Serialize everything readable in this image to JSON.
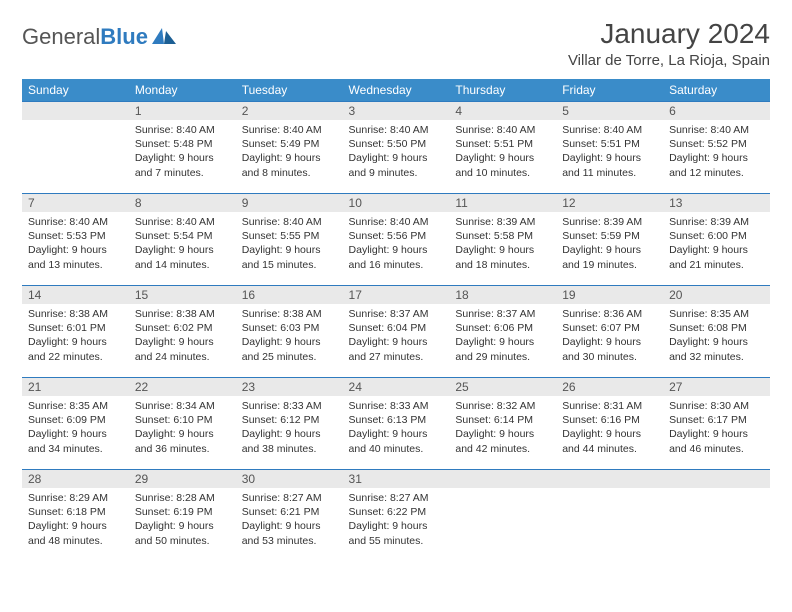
{
  "brand": {
    "part1": "General",
    "part2": "Blue"
  },
  "title": "January 2024",
  "location": "Villar de Torre, La Rioja, Spain",
  "colors": {
    "header_bg": "#3a8cc9",
    "header_text": "#ffffff",
    "daynum_bg": "#e9e9e9",
    "rule": "#2f7bbf",
    "text": "#333333",
    "logo_gray": "#555555",
    "logo_blue": "#2f7bbf"
  },
  "weekdays": [
    "Sunday",
    "Monday",
    "Tuesday",
    "Wednesday",
    "Thursday",
    "Friday",
    "Saturday"
  ],
  "weeks": [
    [
      null,
      {
        "n": "1",
        "sunrise": "8:40 AM",
        "sunset": "5:48 PM",
        "daylight": "9 hours and 7 minutes."
      },
      {
        "n": "2",
        "sunrise": "8:40 AM",
        "sunset": "5:49 PM",
        "daylight": "9 hours and 8 minutes."
      },
      {
        "n": "3",
        "sunrise": "8:40 AM",
        "sunset": "5:50 PM",
        "daylight": "9 hours and 9 minutes."
      },
      {
        "n": "4",
        "sunrise": "8:40 AM",
        "sunset": "5:51 PM",
        "daylight": "9 hours and 10 minutes."
      },
      {
        "n": "5",
        "sunrise": "8:40 AM",
        "sunset": "5:51 PM",
        "daylight": "9 hours and 11 minutes."
      },
      {
        "n": "6",
        "sunrise": "8:40 AM",
        "sunset": "5:52 PM",
        "daylight": "9 hours and 12 minutes."
      }
    ],
    [
      {
        "n": "7",
        "sunrise": "8:40 AM",
        "sunset": "5:53 PM",
        "daylight": "9 hours and 13 minutes."
      },
      {
        "n": "8",
        "sunrise": "8:40 AM",
        "sunset": "5:54 PM",
        "daylight": "9 hours and 14 minutes."
      },
      {
        "n": "9",
        "sunrise": "8:40 AM",
        "sunset": "5:55 PM",
        "daylight": "9 hours and 15 minutes."
      },
      {
        "n": "10",
        "sunrise": "8:40 AM",
        "sunset": "5:56 PM",
        "daylight": "9 hours and 16 minutes."
      },
      {
        "n": "11",
        "sunrise": "8:39 AM",
        "sunset": "5:58 PM",
        "daylight": "9 hours and 18 minutes."
      },
      {
        "n": "12",
        "sunrise": "8:39 AM",
        "sunset": "5:59 PM",
        "daylight": "9 hours and 19 minutes."
      },
      {
        "n": "13",
        "sunrise": "8:39 AM",
        "sunset": "6:00 PM",
        "daylight": "9 hours and 21 minutes."
      }
    ],
    [
      {
        "n": "14",
        "sunrise": "8:38 AM",
        "sunset": "6:01 PM",
        "daylight": "9 hours and 22 minutes."
      },
      {
        "n": "15",
        "sunrise": "8:38 AM",
        "sunset": "6:02 PM",
        "daylight": "9 hours and 24 minutes."
      },
      {
        "n": "16",
        "sunrise": "8:38 AM",
        "sunset": "6:03 PM",
        "daylight": "9 hours and 25 minutes."
      },
      {
        "n": "17",
        "sunrise": "8:37 AM",
        "sunset": "6:04 PM",
        "daylight": "9 hours and 27 minutes."
      },
      {
        "n": "18",
        "sunrise": "8:37 AM",
        "sunset": "6:06 PM",
        "daylight": "9 hours and 29 minutes."
      },
      {
        "n": "19",
        "sunrise": "8:36 AM",
        "sunset": "6:07 PM",
        "daylight": "9 hours and 30 minutes."
      },
      {
        "n": "20",
        "sunrise": "8:35 AM",
        "sunset": "6:08 PM",
        "daylight": "9 hours and 32 minutes."
      }
    ],
    [
      {
        "n": "21",
        "sunrise": "8:35 AM",
        "sunset": "6:09 PM",
        "daylight": "9 hours and 34 minutes."
      },
      {
        "n": "22",
        "sunrise": "8:34 AM",
        "sunset": "6:10 PM",
        "daylight": "9 hours and 36 minutes."
      },
      {
        "n": "23",
        "sunrise": "8:33 AM",
        "sunset": "6:12 PM",
        "daylight": "9 hours and 38 minutes."
      },
      {
        "n": "24",
        "sunrise": "8:33 AM",
        "sunset": "6:13 PM",
        "daylight": "9 hours and 40 minutes."
      },
      {
        "n": "25",
        "sunrise": "8:32 AM",
        "sunset": "6:14 PM",
        "daylight": "9 hours and 42 minutes."
      },
      {
        "n": "26",
        "sunrise": "8:31 AM",
        "sunset": "6:16 PM",
        "daylight": "9 hours and 44 minutes."
      },
      {
        "n": "27",
        "sunrise": "8:30 AM",
        "sunset": "6:17 PM",
        "daylight": "9 hours and 46 minutes."
      }
    ],
    [
      {
        "n": "28",
        "sunrise": "8:29 AM",
        "sunset": "6:18 PM",
        "daylight": "9 hours and 48 minutes."
      },
      {
        "n": "29",
        "sunrise": "8:28 AM",
        "sunset": "6:19 PM",
        "daylight": "9 hours and 50 minutes."
      },
      {
        "n": "30",
        "sunrise": "8:27 AM",
        "sunset": "6:21 PM",
        "daylight": "9 hours and 53 minutes."
      },
      {
        "n": "31",
        "sunrise": "8:27 AM",
        "sunset": "6:22 PM",
        "daylight": "9 hours and 55 minutes."
      },
      null,
      null,
      null
    ]
  ],
  "labels": {
    "sunrise": "Sunrise:",
    "sunset": "Sunset:",
    "daylight": "Daylight:"
  }
}
